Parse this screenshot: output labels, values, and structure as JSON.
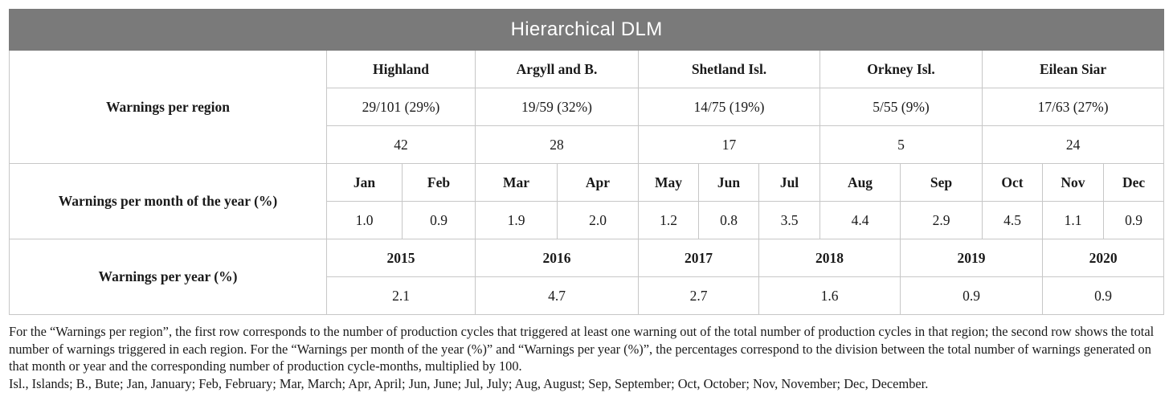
{
  "table": {
    "title": "Hierarchical DLM",
    "region_section": {
      "label": "Warnings per region",
      "regions": [
        "Highland",
        "Argyll and B.",
        "Shetland Isl.",
        "Orkney Isl.",
        "Eilean Siar"
      ],
      "cycles_with_warnings": [
        "29/101 (29%)",
        "19/59 (32%)",
        "14/75 (19%)",
        "5/55 (9%)",
        "17/63 (27%)"
      ],
      "total_warnings": [
        "42",
        "28",
        "17",
        "5",
        "24"
      ]
    },
    "month_section": {
      "label": "Warnings per month of the year (%)",
      "months": [
        "Jan",
        "Feb",
        "Mar",
        "Apr",
        "May",
        "Jun",
        "Jul",
        "Aug",
        "Sep",
        "Oct",
        "Nov",
        "Dec"
      ],
      "values": [
        "1.0",
        "0.9",
        "1.9",
        "2.0",
        "1.2",
        "0.8",
        "3.5",
        "4.4",
        "2.9",
        "4.5",
        "1.1",
        "0.9"
      ]
    },
    "year_section": {
      "label": "Warnings per year (%)",
      "years": [
        "2015",
        "2016",
        "2017",
        "2018",
        "2019",
        "2020"
      ],
      "values": [
        "2.1",
        "4.7",
        "2.7",
        "1.6",
        "0.9",
        "0.9"
      ]
    }
  },
  "notes": {
    "footnote": "For the “Warnings per region”, the first row corresponds to the number of production cycles that triggered at least one warning out of the total number of production cycles in that region; the second row shows the total number of warnings triggered in each region. For the “Warnings per month of the year (%)” and “Warnings per year (%)”, the percentages correspond to the division between the total number of warnings generated on that month or year and the corresponding number of production cycle-months, multiplied by 100.",
    "abbreviations": "Isl., Islands; B., Bute; Jan, January; Feb, February; Mar, March; Apr, April; Jun, June; Jul, July; Aug, August; Sep, September; Oct, October; Nov, November; Dec, December."
  }
}
